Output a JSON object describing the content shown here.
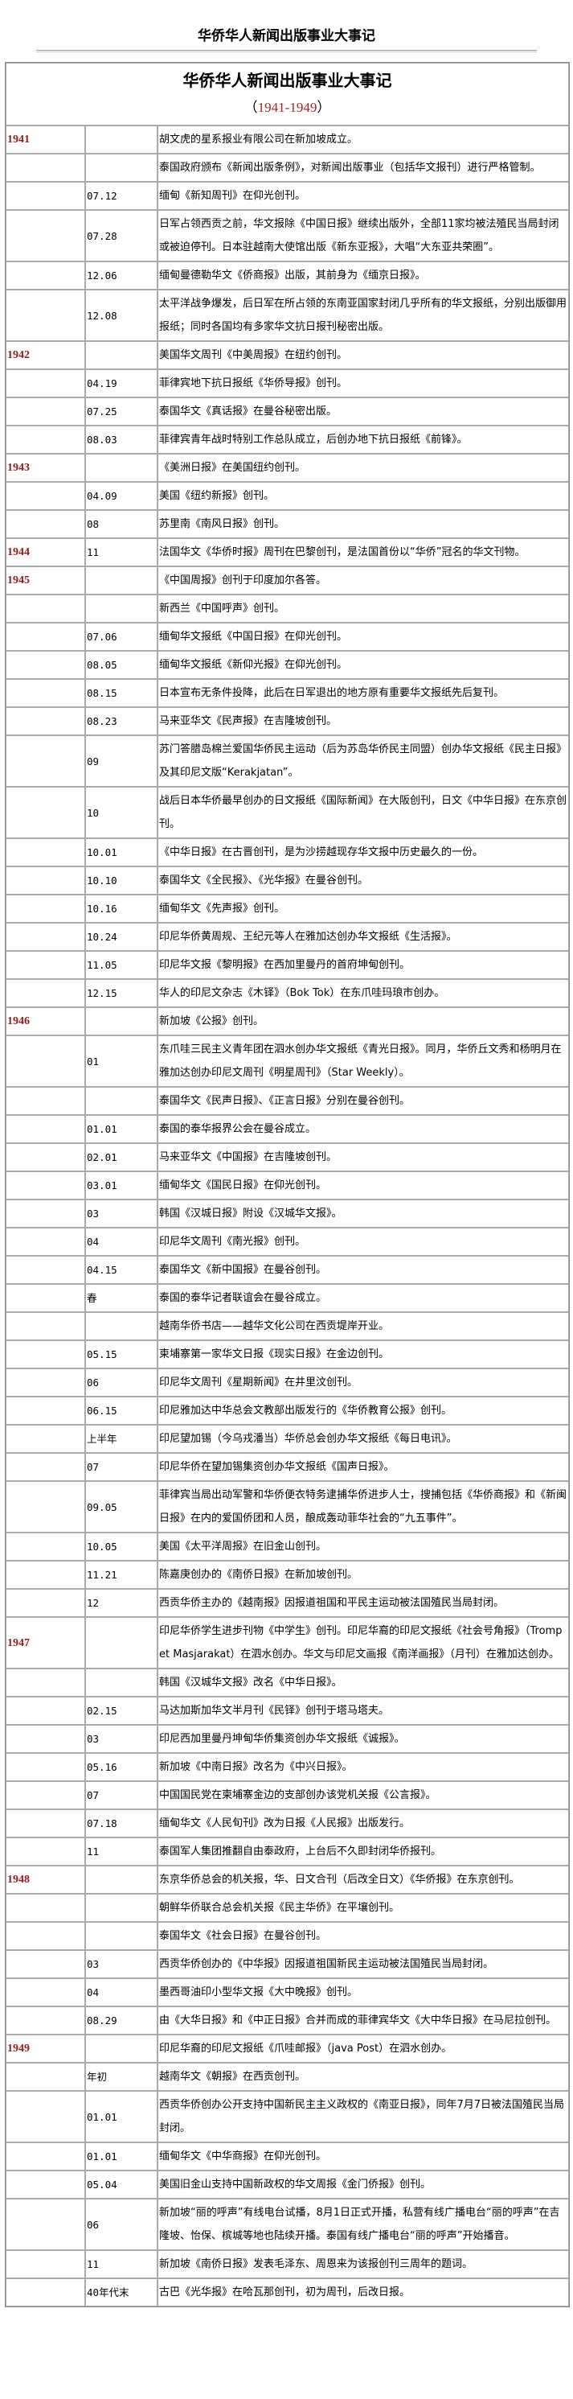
{
  "page_title": "华侨华人新闻出版事业大事记",
  "table": {
    "title": "华侨华人新闻出版事业大事记",
    "range_open": "（",
    "range_years": "1941-1949",
    "range_close": "）",
    "year_color": "#8e1f1f",
    "rows": [
      {
        "year": "1941",
        "date": "",
        "event": "胡文虎的星系报业有限公司在新加坡成立。"
      },
      {
        "year": "",
        "date": "",
        "event": "泰国政府颁布《新闻出版条例》，对新闻出版事业（包括华文报刊）进行严格管制。"
      },
      {
        "year": "",
        "date": "07.12",
        "event": "缅甸《新知周刊》在仰光创刊。"
      },
      {
        "year": "",
        "date": "07.28",
        "event": "日军占领西贡之前，华文报除《中国日报》继续出版外，全部11家均被法殖民当局封闭或被迫停刊。日本驻越南大使馆出版《新东亚报》，大唱“大东亚共荣圈”。"
      },
      {
        "year": "",
        "date": "12.06",
        "event": "缅甸曼德勒华文《侨商报》出版，其前身为《缅京日报》。"
      },
      {
        "year": "",
        "date": "12.08",
        "event": "太平洋战争爆发，后日军在所占领的东南亚国家封闭几乎所有的华文报纸，分别出版御用报纸；同时各国均有多家华文抗日报刊秘密出版。"
      },
      {
        "year": "1942",
        "date": "",
        "event": "美国华文周刊《中美周报》在纽约创刊。"
      },
      {
        "year": "",
        "date": "04.19",
        "event": "菲律宾地下抗日报纸《华侨导报》创刊。"
      },
      {
        "year": "",
        "date": "07.25",
        "event": "泰国华文《真话报》在曼谷秘密出版。"
      },
      {
        "year": "",
        "date": "08.03",
        "event": "菲律宾青年战时特别工作总队成立，后创办地下抗日报纸《前锋》。"
      },
      {
        "year": "1943",
        "date": "",
        "event": "《美洲日报》在美国纽约创刊。"
      },
      {
        "year": "",
        "date": "04.09",
        "event": "美国《纽约新报》创刊。"
      },
      {
        "year": "",
        "date": "08",
        "event": "苏里南《南风日报》创刊。"
      },
      {
        "year": "1944",
        "date": "11",
        "event": "法国华文《华侨时报》周刊在巴黎创刊，是法国首份以“华侨”冠名的华文刊物。"
      },
      {
        "year": "1945",
        "date": "",
        "event": "《中国周报》创刊于印度加尔各答。"
      },
      {
        "year": "",
        "date": "",
        "event": "新西兰《中国呼声》创刊。"
      },
      {
        "year": "",
        "date": "07.06",
        "event": "缅甸华文报纸《中国日报》在仰光创刊。"
      },
      {
        "year": "",
        "date": "08.05",
        "event": "缅甸华文报纸《新仰光报》在仰光创刊。"
      },
      {
        "year": "",
        "date": "08.15",
        "event": "日本宣布无条件投降，此后在日军退出的地方原有重要华文报纸先后复刊。"
      },
      {
        "year": "",
        "date": "08.23",
        "event": "马来亚华文《民声报》在吉隆坡创刊。"
      },
      {
        "year": "",
        "date": "09",
        "event": "苏门答腊岛棉兰爱国华侨民主运动（后为苏岛华侨民主同盟）创办华文报纸《民主日报》及其印尼文版“Kerakjatan”。"
      },
      {
        "year": "",
        "date": "10",
        "event": "战后日本华侨最早创办的日文报纸《国际新闻》在大阪创刊，日文《中华日报》在东京创刊。"
      },
      {
        "year": "",
        "date": "10.01",
        "event": "《中华日报》在古晋创刊，是为沙捞越现存华文报中历史最久的一份。"
      },
      {
        "year": "",
        "date": "10.10",
        "event": "泰国华文《全民报》、《光华报》在曼谷创刊。"
      },
      {
        "year": "",
        "date": "10.16",
        "event": "缅甸华文《先声报》创刊。"
      },
      {
        "year": "",
        "date": "10.24",
        "event": "印尼华侨黄周规、王纪元等人在雅加达创办华文报纸《生活报》。"
      },
      {
        "year": "",
        "date": "11.05",
        "event": "印尼华文报《黎明报》在西加里曼丹的首府坤甸创刊。"
      },
      {
        "year": "",
        "date": "12.15",
        "event": "华人的印尼文杂志《木铎》（Bok Tok）在东爪哇玛琅市创办。"
      },
      {
        "year": "1946",
        "date": "",
        "event": "新加坡《公报》创刊。"
      },
      {
        "year": "",
        "date": "01",
        "event": "东爪哇三民主义青年团在泗水创办华文报纸《青光日报》。同月，华侨丘文秀和杨明月在雅加达创办印尼文周刊《明星周刊》（Star Weekly）。"
      },
      {
        "year": "",
        "date": "",
        "event": "泰国华文《民声日报》、《正言日报》分别在曼谷创刊。"
      },
      {
        "year": "",
        "date": "01.01",
        "event": "泰国的泰华报界公会在曼谷成立。"
      },
      {
        "year": "",
        "date": "02.01",
        "event": "马来亚华文《中国报》在吉隆坡创刊。"
      },
      {
        "year": "",
        "date": "03.01",
        "event": "缅甸华文《国民日报》在仰光创刊。"
      },
      {
        "year": "",
        "date": "03",
        "event": "韩国《汉城日报》附设《汉城华文报》。"
      },
      {
        "year": "",
        "date": "04",
        "event": "印尼华文周刊《南光报》创刊。"
      },
      {
        "year": "",
        "date": "04.15",
        "event": "泰国华文《新中国报》在曼谷创刊。"
      },
      {
        "year": "",
        "date": "春",
        "event": "泰国的泰华记者联谊会在曼谷成立。"
      },
      {
        "year": "",
        "date": "",
        "event": "越南华侨书店——越华文化公司在西贡堤岸开业。"
      },
      {
        "year": "",
        "date": "05.15",
        "event": "柬埔寨第一家华文日报《现实日报》在金边创刊。"
      },
      {
        "year": "",
        "date": "06",
        "event": "印尼华文周刊《星期新闻》在井里汶创刊。"
      },
      {
        "year": "",
        "date": "06.15",
        "event": "印尼雅加达中华总会文教部出版发行的《华侨教育公报》创刊。"
      },
      {
        "year": "",
        "date": "上半年",
        "event": "印尼望加锡（今乌戎潘当）华侨总会创办华文报纸《每日电讯》。"
      },
      {
        "year": "",
        "date": "07",
        "event": "印尼华侨在望加锡集资创办华文报纸《国声日报》。"
      },
      {
        "year": "",
        "date": "09.05",
        "event": "菲律宾当局出动军警和华侨便衣特务逮捕华侨进步人士，搜捕包括《华侨商报》和《新闽日报》在内的爱国侨团和人员，酿成轰动菲华社会的“九五事件”。"
      },
      {
        "year": "",
        "date": "10.05",
        "event": "美国《太平洋周报》在旧金山创刊。"
      },
      {
        "year": "",
        "date": "11.21",
        "event": "陈嘉庚创办的《南侨日报》在新加坡创刊。"
      },
      {
        "year": "",
        "date": "12",
        "event": "西贡华侨主办的《越南报》因报道祖国和平民主运动被法国殖民当局封闭。"
      },
      {
        "year": "1947",
        "date": "",
        "event": "印尼华侨学生进步刊物《中学生》创刊。印尼华裔的印尼文报纸《社会号角报》（Trompet Masjarakat）在泗水创办。华文与印尼文画报《南洋画报》（月刊）在雅加达创办。"
      },
      {
        "year": "",
        "date": "",
        "event": "韩国《汉城华文报》改名《中华日报》。"
      },
      {
        "year": "",
        "date": "02.15",
        "event": "马达加斯加华文半月刊《民铎》创刊于塔马塔夫。"
      },
      {
        "year": "",
        "date": "03",
        "event": "印尼西加里曼丹坤甸华侨集资创办华文报纸《诚报》。"
      },
      {
        "year": "",
        "date": "05.16",
        "event": "新加坡《中南日报》改名为《中兴日报》。"
      },
      {
        "year": "",
        "date": "07",
        "event": "中国国民党在柬埔寨金边的支部创办该党机关报《公言报》。"
      },
      {
        "year": "",
        "date": "07.18",
        "event": "缅甸华文《人民旬刊》改为日报《人民报》出版发行。"
      },
      {
        "year": "",
        "date": "11",
        "event": "泰国军人集团推翻自由泰政府，上台后不久即封闭华侨报刊。"
      },
      {
        "year": "1948",
        "date": "",
        "event": "东京华侨总会的机关报，华、日文合刊（后改全日文）《华侨报》在东京创刊。"
      },
      {
        "year": "",
        "date": "",
        "event": "朝鲜华侨联合总会机关报《民主华侨》在平壤创刊。"
      },
      {
        "year": "",
        "date": "",
        "event": "泰国华文《社会日报》在曼谷创刊。"
      },
      {
        "year": "",
        "date": "03",
        "event": "西贡华侨创办的《中华报》因报道祖国新民主运动被法国殖民当局封闭。"
      },
      {
        "year": "",
        "date": "04",
        "event": "墨西哥油印小型华文报《大中晚报》创刊。"
      },
      {
        "year": "",
        "date": "08.29",
        "event": "由《大华日报》和《中正日报》合并而成的菲律宾华文《大中华日报》在马尼拉创刊。"
      },
      {
        "year": "1949",
        "date": "",
        "event": "印尼华裔的印尼文报纸《爪哇邮报》（java Post）在泗水创办。"
      },
      {
        "year": "",
        "date": "年初",
        "event": "越南华文《朝报》在西贡创刊。"
      },
      {
        "year": "",
        "date": "01.01",
        "event": "西贡华侨创办公开支持中国新民主主义政权的《南亚日报》，同年7月7日被法国殖民当局封闭。"
      },
      {
        "year": "",
        "date": "01.01",
        "event": "缅甸华文《中华商报》在仰光创刊。"
      },
      {
        "year": "",
        "date": "05.04",
        "event": "美国旧金山支持中国新政权的华文周报《金门侨报》创刊。"
      },
      {
        "year": "",
        "date": "06",
        "event": "新加坡“丽的呼声”有线电台试播，8月1日正式开播，私营有线广播电台“丽的呼声”在吉隆坡、怡保、槟城等地也陆续开播。泰国有线广播电台“丽的呼声”开始播音。"
      },
      {
        "year": "",
        "date": "11",
        "event": "新加坡《南侨日报》发表毛泽东、周恩来为该报创刊三周年的题词。"
      },
      {
        "year": "",
        "date": "40年代末",
        "event": "古巴《光华报》在哈瓦那创刊，初为周刊，后改日报。"
      }
    ]
  }
}
